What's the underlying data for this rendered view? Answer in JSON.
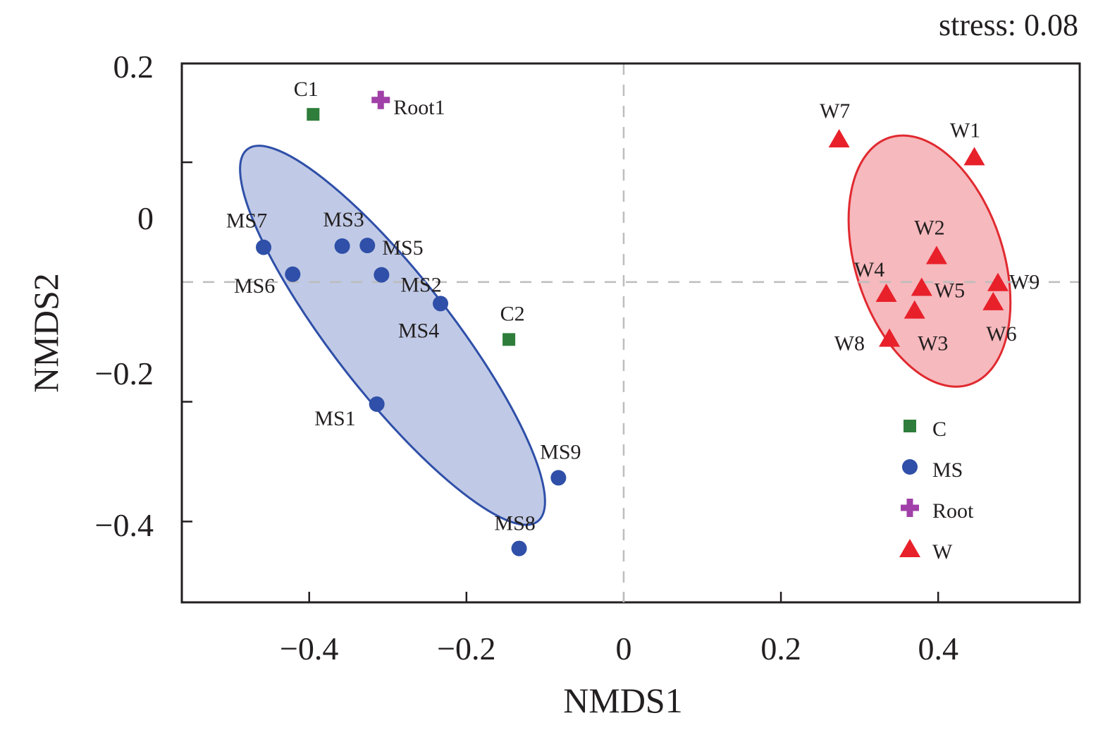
{
  "chart_data": {
    "type": "scatter",
    "title": "",
    "annotation": "stress: 0.08",
    "xlabel": "NMDS1",
    "ylabel": "NMDS2",
    "xlim": [
      -0.562,
      0.58
    ],
    "ylim": [
      -0.535,
      0.365
    ],
    "xticks": [
      -0.4,
      -0.2,
      0,
      0.2,
      0.4
    ],
    "xtick_labels": [
      "−0.4",
      "−0.2",
      "0",
      "0.2",
      "0.4"
    ],
    "yticks": [
      0.2,
      0,
      -0.2,
      -0.4
    ],
    "ytick_labels": [
      "0.2",
      "0",
      "−0.2",
      "−0.4"
    ],
    "reference_lines": {
      "x": 0,
      "y": 0
    },
    "grid": false,
    "legend_position": "bottom-right",
    "groups": [
      {
        "name": "C",
        "marker": "square",
        "color": "#2e7d3a"
      },
      {
        "name": "MS",
        "marker": "circle",
        "color": "#2f4fa8"
      },
      {
        "name": "Root",
        "marker": "plus",
        "color": "#a040a8"
      },
      {
        "name": "W",
        "marker": "triangle",
        "color": "#e8202a"
      }
    ],
    "points": [
      {
        "label": "C1",
        "group": "C",
        "x": -0.395,
        "y": 0.28
      },
      {
        "label": "C2",
        "group": "C",
        "x": -0.146,
        "y": -0.096
      },
      {
        "label": "Root1",
        "group": "Root",
        "x": -0.309,
        "y": 0.304
      },
      {
        "label": "MS1",
        "group": "MS",
        "x": -0.314,
        "y": -0.204
      },
      {
        "label": "MS2",
        "group": "MS",
        "x": -0.308,
        "y": 0.012
      },
      {
        "label": "MS3",
        "group": "MS",
        "x": -0.358,
        "y": 0.06
      },
      {
        "label": "MS4",
        "group": "MS",
        "x": -0.233,
        "y": -0.036
      },
      {
        "label": "MS5",
        "group": "MS",
        "x": -0.326,
        "y": 0.061
      },
      {
        "label": "MS6",
        "group": "MS",
        "x": -0.421,
        "y": 0.013
      },
      {
        "label": "MS7",
        "group": "MS",
        "x": -0.458,
        "y": 0.058
      },
      {
        "label": "MS8",
        "group": "MS",
        "x": -0.133,
        "y": -0.445
      },
      {
        "label": "MS9",
        "group": "MS",
        "x": -0.083,
        "y": -0.327
      },
      {
        "label": "W1",
        "group": "W",
        "x": 0.446,
        "y": 0.209
      },
      {
        "label": "W2",
        "group": "W",
        "x": 0.398,
        "y": 0.044
      },
      {
        "label": "W3",
        "group": "W",
        "x": 0.37,
        "y": -0.047
      },
      {
        "label": "W4",
        "group": "W",
        "x": 0.334,
        "y": -0.019
      },
      {
        "label": "W5",
        "group": "W",
        "x": 0.379,
        "y": -0.009
      },
      {
        "label": "W6",
        "group": "W",
        "x": 0.47,
        "y": -0.033
      },
      {
        "label": "W7",
        "group": "W",
        "x": 0.274,
        "y": 0.239
      },
      {
        "label": "W8",
        "group": "W",
        "x": 0.338,
        "y": -0.094
      },
      {
        "label": "W9",
        "group": "W",
        "x": 0.476,
        "y": -0.001
      }
    ],
    "ellipses": [
      {
        "group": "MS",
        "cx": -0.294,
        "cy": -0.089,
        "semi_major": 0.3,
        "semi_minor": 0.075,
        "angle_deg": 52,
        "fill": "#c0cae6",
        "stroke": "#2f4fa8"
      },
      {
        "group": "W",
        "cx": 0.389,
        "cy": 0.035,
        "semi_major": 0.165,
        "semi_minor": 0.094,
        "angle_deg": 72,
        "fill": "#f6b9bd",
        "stroke": "#e02a30"
      }
    ]
  }
}
